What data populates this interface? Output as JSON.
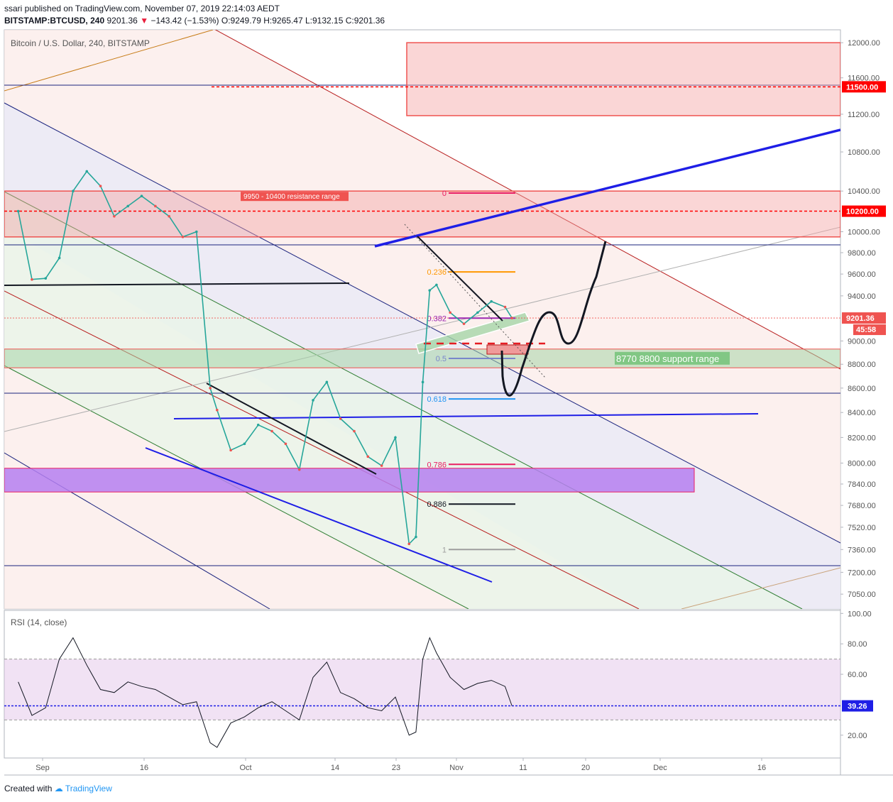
{
  "header": {
    "published_line": "ssari published on TradingView.com, November 07, 2019 22:14:03 AEDT",
    "symbol": "BITSTAMP:BTCUSD, 240",
    "last": "9201.36",
    "change": "−143.42 (−1.53%)",
    "open": "O:9249.79",
    "high": "H:9265.47",
    "low": "L:9132.15",
    "close": "C:9201.36"
  },
  "footer": {
    "created_with": "Created with",
    "brand": "TradingView"
  },
  "colors": {
    "up": "#26a69a",
    "down": "#ef5350",
    "rsi": "#131722",
    "accent": "#2962ff"
  },
  "chart_data": [
    {
      "type": "line",
      "title": "Bitcoin / U.S. Dollar, 240, BITSTAMP",
      "y_scale": "log",
      "ylim": [
        6950,
        12150
      ],
      "y_ticks": [
        12000,
        11600,
        11200,
        10800,
        10400,
        10000,
        9800,
        9600,
        9400,
        9000,
        8800,
        8600,
        8400,
        8200,
        8000,
        7840,
        7680,
        7520,
        7360,
        7200,
        7050
      ],
      "y_tick_labels": [
        "12000.00",
        "11600.00",
        "11200.00",
        "10800.00",
        "10400.00",
        "10000.00",
        "9800.00",
        "9600.00",
        "9400.00",
        "9000.00",
        "8800.00",
        "8600.00",
        "8400.00",
        "8200.00",
        "8000.00",
        "7840.00",
        "7680.00",
        "7520.00",
        "7360.00",
        "7200.00",
        "7050.00"
      ],
      "x_labels": [
        "Sep",
        "16",
        "Oct",
        "14",
        "23",
        "Nov",
        "11",
        "20",
        "Dec",
        "16"
      ],
      "series": [
        {
          "x": [
            "2019-08-27",
            "2019-08-29",
            "2019-08-31",
            "2019-09-02",
            "2019-09-04",
            "2019-09-06",
            "2019-09-08",
            "2019-09-10",
            "2019-09-12",
            "2019-09-14",
            "2019-09-16",
            "2019-09-18",
            "2019-09-20",
            "2019-09-22",
            "2019-09-24",
            "2019-09-25",
            "2019-09-27",
            "2019-09-29",
            "2019-10-01",
            "2019-10-03",
            "2019-10-05",
            "2019-10-07",
            "2019-10-09",
            "2019-10-11",
            "2019-10-13",
            "2019-10-15",
            "2019-10-17",
            "2019-10-19",
            "2019-10-21",
            "2019-10-23",
            "2019-10-24",
            "2019-10-25",
            "2019-10-26",
            "2019-10-27",
            "2019-10-29",
            "2019-10-31",
            "2019-11-02",
            "2019-11-04",
            "2019-11-06",
            "2019-11-07"
          ],
          "values": [
            10200,
            9550,
            9560,
            9750,
            10400,
            10600,
            10450,
            10150,
            10250,
            10350,
            10250,
            10150,
            9950,
            10000,
            8600,
            8420,
            8100,
            8150,
            8300,
            8250,
            8150,
            7950,
            8500,
            8650,
            8350,
            8250,
            8050,
            7980,
            8200,
            7400,
            7450,
            8650,
            9450,
            9500,
            9250,
            9150,
            9250,
            9350,
            9300,
            9201.36
          ]
        }
      ],
      "price_levels": [
        {
          "label": "11500.00",
          "price": 11500,
          "color": "#ff0000"
        },
        {
          "label": "10200.00",
          "price": 10200,
          "color": "#ff0000"
        },
        {
          "label": "9201.36",
          "price": 9201.36,
          "color": "#ef5350"
        }
      ],
      "countdown": "45:58",
      "zones": [
        {
          "label": "9950 - 10400 resistance range",
          "from": 9950,
          "to": 10400
        },
        {
          "label": "8770 8800 support range",
          "from": 8770,
          "to": 8930
        }
      ],
      "fib_retracement": [
        {
          "level": "0",
          "price": 10380,
          "color": "#e91e63"
        },
        {
          "level": "0.236",
          "price": 9620,
          "color": "#ff9800"
        },
        {
          "level": "0.382",
          "price": 9200,
          "color": "#9c27b0"
        },
        {
          "level": "0.5",
          "price": 8850,
          "color": "#7986cb"
        },
        {
          "level": "0.618",
          "price": 8510,
          "color": "#2196f3"
        },
        {
          "level": "0.786",
          "price": 7990,
          "color": "#e91e63"
        },
        {
          "level": "0.886",
          "price": 7690,
          "color": "#131722"
        },
        {
          "level": "1",
          "price": 7360,
          "color": "#9e9e9e"
        }
      ]
    },
    {
      "type": "line",
      "title": "RSI (14, close)",
      "ylim": [
        5,
        102
      ],
      "y_ticks": [
        100,
        80,
        60,
        20
      ],
      "y_tick_labels": [
        "100.00",
        "80.00",
        "60.00",
        "20.00"
      ],
      "band": [
        30,
        70
      ],
      "current": "39.26",
      "series": [
        {
          "x": [
            "2019-08-27",
            "2019-08-29",
            "2019-08-31",
            "2019-09-02",
            "2019-09-04",
            "2019-09-06",
            "2019-09-08",
            "2019-09-10",
            "2019-09-12",
            "2019-09-14",
            "2019-09-16",
            "2019-09-18",
            "2019-09-20",
            "2019-09-22",
            "2019-09-24",
            "2019-09-25",
            "2019-09-27",
            "2019-09-29",
            "2019-10-01",
            "2019-10-03",
            "2019-10-05",
            "2019-10-07",
            "2019-10-09",
            "2019-10-11",
            "2019-10-13",
            "2019-10-15",
            "2019-10-17",
            "2019-10-19",
            "2019-10-21",
            "2019-10-23",
            "2019-10-24",
            "2019-10-25",
            "2019-10-26",
            "2019-10-27",
            "2019-10-29",
            "2019-10-31",
            "2019-11-02",
            "2019-11-04",
            "2019-11-06",
            "2019-11-07"
          ],
          "values": [
            55,
            33,
            38,
            70,
            84,
            66,
            50,
            48,
            55,
            52,
            50,
            45,
            40,
            42,
            15,
            12,
            28,
            32,
            38,
            42,
            36,
            30,
            58,
            68,
            48,
            44,
            38,
            36,
            45,
            20,
            22,
            70,
            84,
            74,
            58,
            50,
            54,
            56,
            52,
            39.26
          ]
        }
      ]
    }
  ]
}
